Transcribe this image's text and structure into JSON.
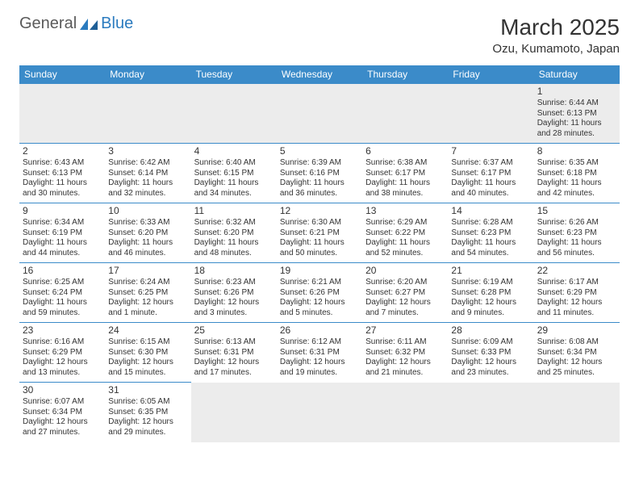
{
  "logo": {
    "part1": "General",
    "part2": "Blue"
  },
  "title": "March 2025",
  "location": "Ozu, Kumamoto, Japan",
  "weekdays": [
    "Sunday",
    "Monday",
    "Tuesday",
    "Wednesday",
    "Thursday",
    "Friday",
    "Saturday"
  ],
  "colors": {
    "header_bg": "#3b8bc9",
    "header_text": "#ffffff",
    "border": "#3b8bc9",
    "logo_gray": "#5a5a5a",
    "logo_blue": "#2b7bbf",
    "empty_bg": "#ececec",
    "text": "#333333"
  },
  "typography": {
    "title_fontsize": 28,
    "location_fontsize": 15,
    "weekday_fontsize": 12,
    "daynum_fontsize": 12,
    "cell_fontsize": 10
  },
  "layout": {
    "cols": 7,
    "rows": 6,
    "first_weekday_index": 6
  },
  "days": [
    {
      "n": 1,
      "sunrise": "6:44 AM",
      "sunset": "6:13 PM",
      "daylight": "11 hours and 28 minutes."
    },
    {
      "n": 2,
      "sunrise": "6:43 AM",
      "sunset": "6:13 PM",
      "daylight": "11 hours and 30 minutes."
    },
    {
      "n": 3,
      "sunrise": "6:42 AM",
      "sunset": "6:14 PM",
      "daylight": "11 hours and 32 minutes."
    },
    {
      "n": 4,
      "sunrise": "6:40 AM",
      "sunset": "6:15 PM",
      "daylight": "11 hours and 34 minutes."
    },
    {
      "n": 5,
      "sunrise": "6:39 AM",
      "sunset": "6:16 PM",
      "daylight": "11 hours and 36 minutes."
    },
    {
      "n": 6,
      "sunrise": "6:38 AM",
      "sunset": "6:17 PM",
      "daylight": "11 hours and 38 minutes."
    },
    {
      "n": 7,
      "sunrise": "6:37 AM",
      "sunset": "6:17 PM",
      "daylight": "11 hours and 40 minutes."
    },
    {
      "n": 8,
      "sunrise": "6:35 AM",
      "sunset": "6:18 PM",
      "daylight": "11 hours and 42 minutes."
    },
    {
      "n": 9,
      "sunrise": "6:34 AM",
      "sunset": "6:19 PM",
      "daylight": "11 hours and 44 minutes."
    },
    {
      "n": 10,
      "sunrise": "6:33 AM",
      "sunset": "6:20 PM",
      "daylight": "11 hours and 46 minutes."
    },
    {
      "n": 11,
      "sunrise": "6:32 AM",
      "sunset": "6:20 PM",
      "daylight": "11 hours and 48 minutes."
    },
    {
      "n": 12,
      "sunrise": "6:30 AM",
      "sunset": "6:21 PM",
      "daylight": "11 hours and 50 minutes."
    },
    {
      "n": 13,
      "sunrise": "6:29 AM",
      "sunset": "6:22 PM",
      "daylight": "11 hours and 52 minutes."
    },
    {
      "n": 14,
      "sunrise": "6:28 AM",
      "sunset": "6:23 PM",
      "daylight": "11 hours and 54 minutes."
    },
    {
      "n": 15,
      "sunrise": "6:26 AM",
      "sunset": "6:23 PM",
      "daylight": "11 hours and 56 minutes."
    },
    {
      "n": 16,
      "sunrise": "6:25 AM",
      "sunset": "6:24 PM",
      "daylight": "11 hours and 59 minutes."
    },
    {
      "n": 17,
      "sunrise": "6:24 AM",
      "sunset": "6:25 PM",
      "daylight": "12 hours and 1 minute."
    },
    {
      "n": 18,
      "sunrise": "6:23 AM",
      "sunset": "6:26 PM",
      "daylight": "12 hours and 3 minutes."
    },
    {
      "n": 19,
      "sunrise": "6:21 AM",
      "sunset": "6:26 PM",
      "daylight": "12 hours and 5 minutes."
    },
    {
      "n": 20,
      "sunrise": "6:20 AM",
      "sunset": "6:27 PM",
      "daylight": "12 hours and 7 minutes."
    },
    {
      "n": 21,
      "sunrise": "6:19 AM",
      "sunset": "6:28 PM",
      "daylight": "12 hours and 9 minutes."
    },
    {
      "n": 22,
      "sunrise": "6:17 AM",
      "sunset": "6:29 PM",
      "daylight": "12 hours and 11 minutes."
    },
    {
      "n": 23,
      "sunrise": "6:16 AM",
      "sunset": "6:29 PM",
      "daylight": "12 hours and 13 minutes."
    },
    {
      "n": 24,
      "sunrise": "6:15 AM",
      "sunset": "6:30 PM",
      "daylight": "12 hours and 15 minutes."
    },
    {
      "n": 25,
      "sunrise": "6:13 AM",
      "sunset": "6:31 PM",
      "daylight": "12 hours and 17 minutes."
    },
    {
      "n": 26,
      "sunrise": "6:12 AM",
      "sunset": "6:31 PM",
      "daylight": "12 hours and 19 minutes."
    },
    {
      "n": 27,
      "sunrise": "6:11 AM",
      "sunset": "6:32 PM",
      "daylight": "12 hours and 21 minutes."
    },
    {
      "n": 28,
      "sunrise": "6:09 AM",
      "sunset": "6:33 PM",
      "daylight": "12 hours and 23 minutes."
    },
    {
      "n": 29,
      "sunrise": "6:08 AM",
      "sunset": "6:34 PM",
      "daylight": "12 hours and 25 minutes."
    },
    {
      "n": 30,
      "sunrise": "6:07 AM",
      "sunset": "6:34 PM",
      "daylight": "12 hours and 27 minutes."
    },
    {
      "n": 31,
      "sunrise": "6:05 AM",
      "sunset": "6:35 PM",
      "daylight": "12 hours and 29 minutes."
    }
  ],
  "labels": {
    "sunrise": "Sunrise:",
    "sunset": "Sunset:",
    "daylight": "Daylight:"
  }
}
